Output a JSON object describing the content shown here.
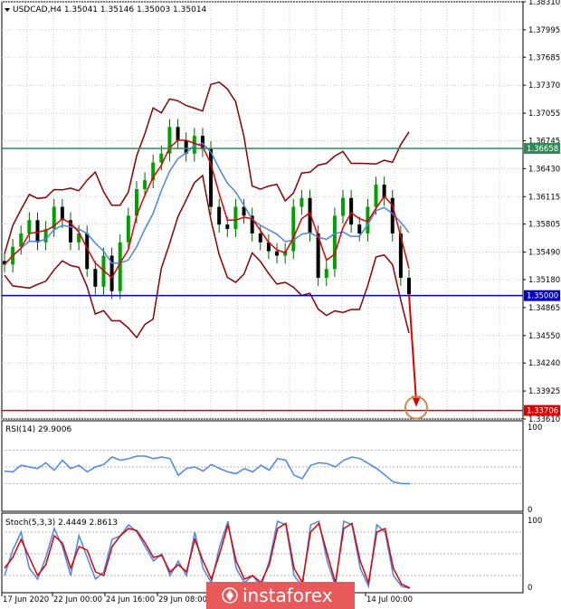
{
  "chart_data": [
    {
      "type": "candlestick",
      "title": "USDCAD,H4  1.35041 1.35146 1.35003 1.35014",
      "ylim": [
        1.3361,
        1.3831
      ],
      "y_ticks": [
        "1.38310",
        "1.37995",
        "1.37685",
        "1.37370",
        "1.37055",
        "1.36745",
        "1.36430",
        "1.36115",
        "1.35805",
        "1.35490",
        "1.35180",
        "1.34865",
        "1.34550",
        "1.34240",
        "1.33925",
        "1.33610"
      ],
      "x_ticks": [
        "17 Jun 2020",
        "22 Jun 00:00",
        "24 Jun 16:00",
        "29 Jun 08:00",
        "14 Jul 00:00"
      ],
      "levels": [
        {
          "value": 1.36658,
          "label": "1.36658",
          "color": "#2e8b57"
        },
        {
          "value": 1.35,
          "label": "1.35000",
          "color": "#0000c8"
        },
        {
          "value": 1.33706,
          "label": "1.33706",
          "color": "#e00000"
        }
      ],
      "close_path": [
        1.3535,
        1.3555,
        1.357,
        1.3585,
        1.356,
        1.3575,
        1.36,
        1.3585,
        1.356,
        1.357,
        1.353,
        1.351,
        1.3545,
        1.3505,
        1.356,
        1.359,
        1.362,
        1.363,
        1.365,
        1.366,
        1.369,
        1.3675,
        1.366,
        1.368,
        1.3665,
        1.36,
        1.358,
        1.3575,
        1.36,
        1.359,
        1.357,
        1.356,
        1.355,
        1.3545,
        1.355,
        1.36,
        1.361,
        1.357,
        1.352,
        1.353,
        1.359,
        1.361,
        1.358,
        1.357,
        1.36,
        1.3625,
        1.361,
        1.357,
        1.352,
        1.35014
      ],
      "forecast": {
        "from": 1.35014,
        "to": 1.33706
      }
    },
    {
      "type": "line",
      "title": "RSI(14) 29.9006",
      "ylim": [
        0,
        100
      ],
      "y_ticks": [
        "100",
        "0"
      ],
      "levels": [
        70,
        50,
        30
      ],
      "series": [
        {
          "values": [
            45,
            44,
            52,
            50,
            48,
            55,
            46,
            58,
            48,
            52,
            44,
            50,
            53,
            62,
            58,
            60,
            63,
            63,
            60,
            62,
            60,
            40,
            48,
            50,
            45,
            53,
            48,
            44,
            42,
            48,
            44,
            52,
            46,
            60,
            58,
            40,
            36,
            52,
            55,
            54,
            50,
            58,
            62,
            60,
            54,
            48,
            40,
            32,
            30,
            29.9
          ]
        }
      ]
    },
    {
      "type": "line",
      "title": "Stoch(5,3,3) 2.4449 2.8613",
      "ylim": [
        0,
        100
      ],
      "y_ticks": [
        "100",
        "0"
      ],
      "levels": [
        80,
        50,
        20
      ],
      "series": [
        {
          "values": [
            20,
            55,
            80,
            30,
            15,
            45,
            85,
            60,
            20,
            75,
            45,
            15,
            25,
            70,
            75,
            90,
            80,
            60,
            40,
            50,
            20,
            40,
            20,
            80,
            30,
            10,
            60,
            95,
            30,
            10,
            20,
            5,
            40,
            95,
            90,
            20,
            5,
            90,
            95,
            40,
            5,
            95,
            90,
            30,
            5,
            90,
            80,
            20,
            5,
            2.4
          ]
        },
        {
          "values": [
            30,
            45,
            70,
            45,
            20,
            35,
            75,
            65,
            30,
            60,
            55,
            25,
            20,
            60,
            75,
            85,
            82,
            65,
            45,
            48,
            25,
            35,
            25,
            70,
            40,
            15,
            50,
            90,
            40,
            15,
            20,
            10,
            35,
            85,
            92,
            30,
            10,
            80,
            92,
            50,
            10,
            85,
            92,
            40,
            10,
            80,
            85,
            30,
            8,
            2.9
          ]
        }
      ]
    }
  ],
  "watermark": "instaforex"
}
